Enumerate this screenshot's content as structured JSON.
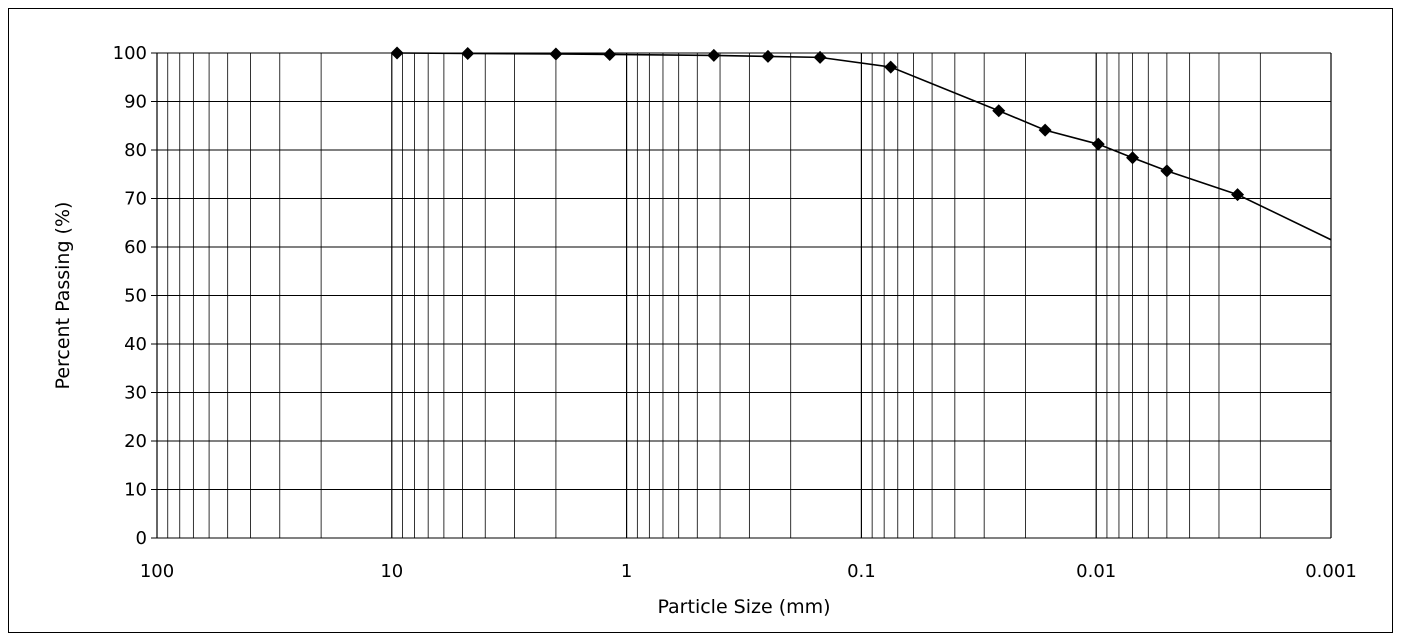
{
  "chart_data": {
    "type": "scatter",
    "title": "",
    "xlabel": "Particle Size (mm)",
    "ylabel": "Percent Passing (%)",
    "x_scale": "log",
    "x_reversed": true,
    "xlim": [
      100,
      0.001
    ],
    "ylim": [
      0,
      100
    ],
    "grid": true,
    "x_tick_labels": [
      "100",
      "10",
      "1",
      "0.1",
      "0.01",
      "0.001"
    ],
    "x_tick_values": [
      100,
      10,
      1,
      0.1,
      0.01,
      0.001
    ],
    "y_tick_labels": [
      "0",
      "10",
      "20",
      "30",
      "40",
      "50",
      "60",
      "70",
      "80",
      "90",
      "100"
    ],
    "series": [
      {
        "marker": "diamond",
        "color": "#000000",
        "points": [
          {
            "x": 9.5,
            "y": 100
          },
          {
            "x": 4.75,
            "y": 99.9
          },
          {
            "x": 2.0,
            "y": 99.8
          },
          {
            "x": 1.18,
            "y": 99.7
          },
          {
            "x": 0.425,
            "y": 99.5
          },
          {
            "x": 0.25,
            "y": 99.3
          },
          {
            "x": 0.15,
            "y": 99.1
          },
          {
            "x": 0.075,
            "y": 97.1
          },
          {
            "x": 0.026,
            "y": 88.1
          },
          {
            "x": 0.0165,
            "y": 84.1
          },
          {
            "x": 0.0098,
            "y": 81.2
          },
          {
            "x": 0.007,
            "y": 78.4
          },
          {
            "x": 0.005,
            "y": 75.7
          },
          {
            "x": 0.0025,
            "y": 70.8
          },
          {
            "x": 0.001,
            "y": 61.5
          }
        ]
      }
    ]
  }
}
